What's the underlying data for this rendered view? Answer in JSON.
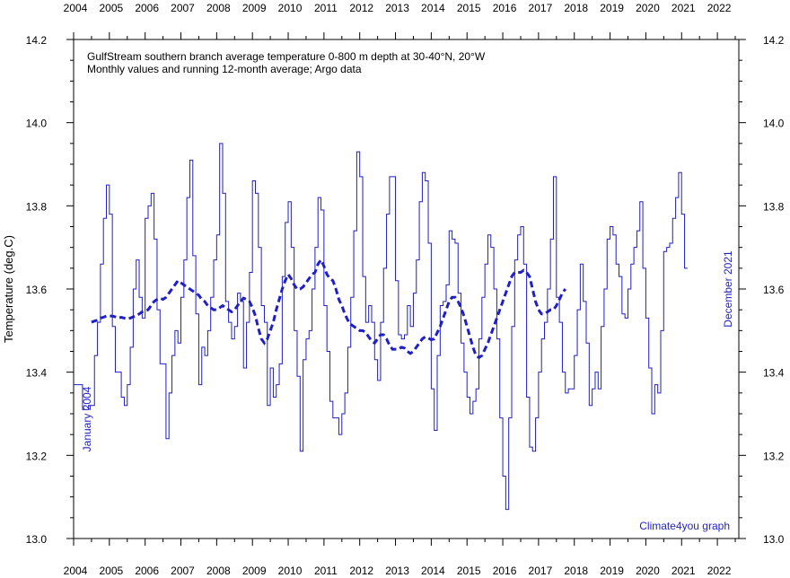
{
  "chart_data": {
    "type": "line",
    "title": "GulfStream southern branch average temperature 0-800 m depth at 30-40°N, 20°W",
    "subtitle": "Monthly values and running 12-month average; Argo data",
    "ylabel": "Temperature (deg.C)",
    "xlim": [
      2004.0,
      2022.6
    ],
    "ylim": [
      13.0,
      14.2
    ],
    "x_ticks": [
      "2004",
      "2005",
      "2006",
      "2007",
      "2008",
      "2009",
      "2010",
      "2011",
      "2012",
      "2013",
      "2014",
      "2015",
      "2016",
      "2017",
      "2018",
      "2019",
      "2020",
      "2021",
      "2022"
    ],
    "y_ticks": [
      "13.0",
      "13.2",
      "13.4",
      "13.6",
      "13.8",
      "14.0",
      "14.2"
    ],
    "annotations": {
      "start": "January 2004",
      "end": "December 2021",
      "credit": "Climate4you graph"
    },
    "colors": {
      "series": "#1f1fc8",
      "axis": "#000000"
    },
    "series": [
      {
        "style": "step",
        "x_start": 2004.0,
        "x_step": 0.08333,
        "values": [
          13.37,
          13.37,
          13.37,
          13.31,
          13.31,
          13.32,
          13.32,
          13.44,
          13.52,
          13.66,
          13.77,
          13.85,
          13.78,
          13.51,
          13.4,
          13.4,
          13.34,
          13.32,
          13.37,
          13.46,
          13.6,
          13.67,
          13.58,
          13.53,
          13.77,
          13.8,
          13.83,
          13.72,
          13.55,
          13.42,
          13.42,
          13.24,
          13.35,
          13.44,
          13.5,
          13.47,
          13.58,
          13.67,
          13.82,
          13.91,
          13.68,
          13.54,
          13.37,
          13.46,
          13.44,
          13.5,
          13.58,
          13.67,
          13.73,
          13.95,
          13.83,
          13.57,
          13.52,
          13.48,
          13.51,
          13.59,
          13.57,
          13.41,
          13.52,
          13.64,
          13.86,
          13.83,
          13.7,
          13.56,
          13.52,
          13.32,
          13.41,
          13.34,
          13.37,
          13.42,
          13.63,
          13.76,
          13.81,
          13.7,
          13.5,
          13.39,
          13.21,
          13.43,
          13.48,
          13.5,
          13.6,
          13.7,
          13.82,
          13.79,
          13.56,
          13.45,
          13.33,
          13.29,
          13.29,
          13.25,
          13.3,
          13.35,
          13.46,
          13.58,
          13.74,
          13.93,
          13.87,
          13.63,
          13.52,
          13.56,
          13.52,
          13.43,
          13.38,
          13.52,
          13.65,
          13.78,
          13.87,
          13.87,
          13.62,
          13.49,
          13.48,
          13.49,
          13.56,
          13.51,
          13.59,
          13.67,
          13.81,
          13.88,
          13.86,
          13.71,
          13.36,
          13.26,
          13.44,
          13.56,
          13.57,
          13.61,
          13.74,
          13.72,
          13.71,
          13.59,
          13.47,
          13.4,
          13.34,
          13.3,
          13.33,
          13.36,
          13.48,
          13.58,
          13.66,
          13.73,
          13.7,
          13.6,
          13.48,
          13.29,
          13.15,
          13.07,
          13.29,
          13.51,
          13.67,
          13.73,
          13.75,
          13.66,
          13.34,
          13.22,
          13.21,
          13.29,
          13.4,
          13.48,
          13.52,
          13.6,
          13.72,
          13.87,
          13.58,
          13.52,
          13.4,
          13.35,
          13.36,
          13.36,
          13.44,
          13.55,
          13.66,
          13.57,
          13.47,
          13.32,
          13.36,
          13.4,
          13.36,
          13.51,
          13.6,
          13.72,
          13.75,
          13.73,
          13.66,
          13.63,
          13.54,
          13.53,
          13.6,
          13.66,
          13.7,
          13.74,
          13.81,
          13.65,
          13.53,
          13.41,
          13.3,
          13.37,
          13.35,
          13.5,
          13.69,
          13.7,
          13.71,
          13.77,
          13.82,
          13.88,
          13.78,
          13.65
        ]
      },
      {
        "style": "dashed",
        "x_start": 2004.5,
        "x_step": 0.08333,
        "values": [
          13.52,
          13.523,
          13.525,
          13.53,
          13.532,
          13.535,
          13.535,
          13.535,
          13.533,
          13.53,
          13.532,
          13.53,
          13.528,
          13.53,
          13.533,
          13.535,
          13.54,
          13.545,
          13.548,
          13.55,
          13.56,
          13.57,
          13.575,
          13.578,
          13.575,
          13.58,
          13.59,
          13.6,
          13.61,
          13.62,
          13.615,
          13.61,
          13.605,
          13.6,
          13.595,
          13.59,
          13.585,
          13.575,
          13.57,
          13.56,
          13.555,
          13.55,
          13.55,
          13.555,
          13.56,
          13.555,
          13.55,
          13.545,
          13.55,
          13.56,
          13.57,
          13.578,
          13.575,
          13.57,
          13.555,
          13.535,
          13.505,
          13.48,
          13.47,
          13.48,
          13.5,
          13.52,
          13.55,
          13.575,
          13.6,
          13.62,
          13.635,
          13.625,
          13.61,
          13.6,
          13.6,
          13.605,
          13.615,
          13.625,
          13.635,
          13.64,
          13.66,
          13.67,
          13.655,
          13.635,
          13.625,
          13.62,
          13.6,
          13.575,
          13.56,
          13.54,
          13.525,
          13.515,
          13.51,
          13.505,
          13.5,
          13.5,
          13.495,
          13.485,
          13.475,
          13.47,
          13.48,
          13.49,
          13.49,
          13.48,
          13.465,
          13.455,
          13.455,
          13.455,
          13.46,
          13.458,
          13.45,
          13.445,
          13.45,
          13.46,
          13.47,
          13.48,
          13.485,
          13.482,
          13.478,
          13.48,
          13.495,
          13.51,
          13.53,
          13.55,
          13.57,
          13.58,
          13.58,
          13.57,
          13.555,
          13.535,
          13.51,
          13.485,
          13.46,
          13.44,
          13.435,
          13.44,
          13.455,
          13.47,
          13.49,
          13.51,
          13.53,
          13.55,
          13.57,
          13.59,
          13.61,
          13.63,
          13.64,
          13.64,
          13.64,
          13.645,
          13.64,
          13.63,
          13.6,
          13.57,
          13.55,
          13.54,
          13.54,
          13.545,
          13.55,
          13.55,
          13.56,
          13.575,
          13.59,
          13.6
        ]
      }
    ]
  }
}
